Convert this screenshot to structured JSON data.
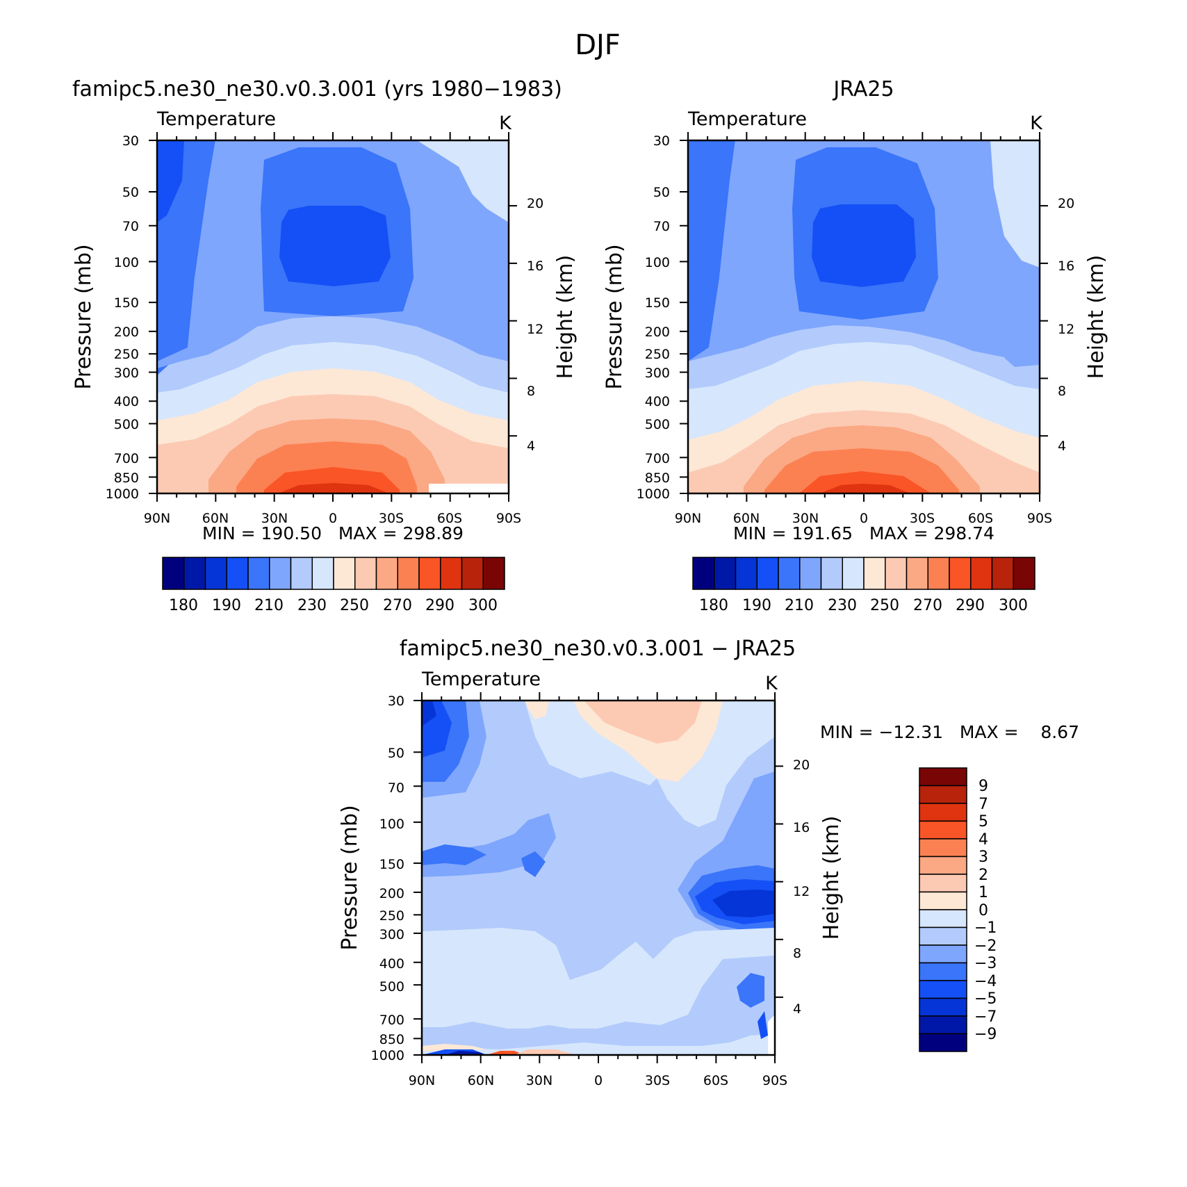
{
  "page_title": "DJF",
  "chart_data": [
    {
      "type": "heatmap",
      "panel_title": "famipc5.ne30_ne30.v0.3.001 (yrs 1980−1983)",
      "variable_label": "Temperature",
      "units": "K",
      "xlabel": "",
      "ylabel": "Pressure (mb)",
      "y2label": "Height (km)",
      "x_ticklabels": [
        "90N",
        "60N",
        "30N",
        "0",
        "30S",
        "60S",
        "90S"
      ],
      "y_ticklabels": [
        "30",
        "50",
        "70",
        "100",
        "150",
        "200",
        "250",
        "300",
        "400",
        "500",
        "700",
        "850",
        "1000"
      ],
      "y2_ticklabels": [
        "20",
        "16",
        "12",
        "8",
        "4"
      ],
      "ylim": [
        1000,
        30
      ],
      "y_scale": "log",
      "stats": "MIN = 190.50   MAX = 298.89",
      "min": 190.5,
      "max": 298.89,
      "colorbar_labels": [
        "180",
        "190",
        "210",
        "230",
        "250",
        "270",
        "290",
        "300"
      ],
      "colorbar_orientation": "horizontal"
    },
    {
      "type": "heatmap",
      "panel_title": "JRA25",
      "variable_label": "Temperature",
      "units": "K",
      "xlabel": "",
      "ylabel": "Pressure (mb)",
      "y2label": "Height (km)",
      "x_ticklabels": [
        "90N",
        "60N",
        "30N",
        "0",
        "30S",
        "60S",
        "90S"
      ],
      "y_ticklabels": [
        "30",
        "50",
        "70",
        "100",
        "150",
        "200",
        "250",
        "300",
        "400",
        "500",
        "700",
        "850",
        "1000"
      ],
      "y2_ticklabels": [
        "20",
        "16",
        "12",
        "8",
        "4"
      ],
      "ylim": [
        1000,
        30
      ],
      "y_scale": "log",
      "stats": "MIN = 191.65   MAX = 298.74",
      "min": 191.65,
      "max": 298.74,
      "colorbar_labels": [
        "180",
        "190",
        "210",
        "230",
        "250",
        "270",
        "290",
        "300"
      ],
      "colorbar_orientation": "horizontal"
    },
    {
      "type": "heatmap",
      "panel_title": "famipc5.ne30_ne30.v0.3.001 − JRA25",
      "variable_label": "Temperature",
      "units": "K",
      "xlabel": "",
      "ylabel": "Pressure (mb)",
      "y2label": "Height (km)",
      "x_ticklabels": [
        "90N",
        "60N",
        "30N",
        "0",
        "30S",
        "60S",
        "90S"
      ],
      "y_ticklabels": [
        "30",
        "50",
        "70",
        "100",
        "150",
        "200",
        "250",
        "300",
        "400",
        "500",
        "700",
        "850",
        "1000"
      ],
      "y2_ticklabels": [
        "20",
        "16",
        "12",
        "8",
        "4"
      ],
      "ylim": [
        1000,
        30
      ],
      "y_scale": "log",
      "stats": "MIN = −12.31   MAX =    8.67",
      "min": -12.31,
      "max": 8.67,
      "colorbar_labels": [
        "9",
        "7",
        "5",
        "4",
        "3",
        "2",
        "1",
        "0",
        "−1",
        "−2",
        "−3",
        "−4",
        "−5",
        "−7",
        "−9"
      ],
      "colorbar_orientation": "vertical"
    }
  ],
  "colormaps": {
    "temperature": [
      "#00007f",
      "#0018a8",
      "#0535d6",
      "#1450f5",
      "#3a75fa",
      "#7fa6fd",
      "#b2cbfc",
      "#d6e6fc",
      "#fde8d6",
      "#fccab3",
      "#fba884",
      "#fc8152",
      "#fa5526",
      "#e03411",
      "#b8230c",
      "#7a0505"
    ],
    "difference": [
      "#00007f",
      "#0018a8",
      "#0535d6",
      "#1450f5",
      "#3a75fa",
      "#7fa6fd",
      "#b2cbfc",
      "#d6e6fc",
      "#fde8d6",
      "#fccab3",
      "#fba884",
      "#fc8152",
      "#fa5526",
      "#e03411",
      "#b8230c",
      "#7a0505"
    ]
  }
}
